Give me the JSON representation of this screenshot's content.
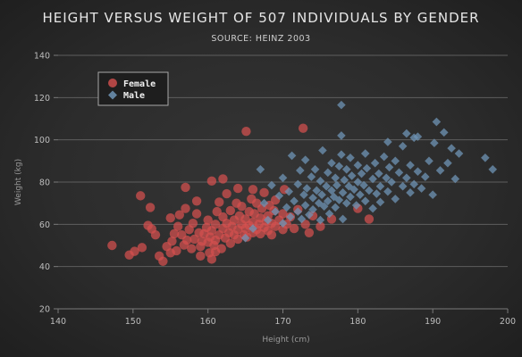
{
  "chart_data": {
    "type": "scatter",
    "title": "HEIGHT VERSUS WEIGHT OF 507 INDIVIDUALS BY GENDER",
    "subtitle": "SOURCE: HEINZ 2003",
    "xlabel": "Height (cm)",
    "ylabel": "Weight (kg)",
    "xlim": [
      140,
      200
    ],
    "ylim": [
      20,
      140
    ],
    "x_ticks": [
      140,
      150,
      160,
      170,
      180,
      190,
      200
    ],
    "y_ticks": [
      20,
      40,
      60,
      80,
      100,
      120,
      140
    ],
    "grid": "horizontal",
    "legend_position": "top-left",
    "series": [
      {
        "name": "Female",
        "marker": "circle",
        "color": "#d6504f",
        "points": [
          [
            147.2,
            50.0
          ],
          [
            149.5,
            45.5
          ],
          [
            150.2,
            47.2
          ],
          [
            151.0,
            73.5
          ],
          [
            151.2,
            49.0
          ],
          [
            152.0,
            59.5
          ],
          [
            152.5,
            57.8
          ],
          [
            152.3,
            68.0
          ],
          [
            153.5,
            45.0
          ],
          [
            154.0,
            42.5
          ],
          [
            154.5,
            49.5
          ],
          [
            155.0,
            46.5
          ],
          [
            155.2,
            52.0
          ],
          [
            155.5,
            55.5
          ],
          [
            155.8,
            47.5
          ],
          [
            156.0,
            59.0
          ],
          [
            156.2,
            64.5
          ],
          [
            156.5,
            55.0
          ],
          [
            156.8,
            50.2
          ],
          [
            157.0,
            67.5
          ],
          [
            157.2,
            52.5
          ],
          [
            157.5,
            57.5
          ],
          [
            157.8,
            48.5
          ],
          [
            158.0,
            60.5
          ],
          [
            158.2,
            53.0
          ],
          [
            158.5,
            65.0
          ],
          [
            158.8,
            56.0
          ],
          [
            159.0,
            49.5
          ],
          [
            159.2,
            52.0
          ],
          [
            159.5,
            55.5
          ],
          [
            159.8,
            58.5
          ],
          [
            160.0,
            51.5
          ],
          [
            160.0,
            62.0
          ],
          [
            160.2,
            46.5
          ],
          [
            160.3,
            54.0
          ],
          [
            160.5,
            57.0
          ],
          [
            160.5,
            80.5
          ],
          [
            160.8,
            50.0
          ],
          [
            161.0,
            52.5
          ],
          [
            161.0,
            60.0
          ],
          [
            161.2,
            66.0
          ],
          [
            161.5,
            55.0
          ],
          [
            161.5,
            70.5
          ],
          [
            161.8,
            48.5
          ],
          [
            162.0,
            58.0
          ],
          [
            162.0,
            63.5
          ],
          [
            162.3,
            53.5
          ],
          [
            162.5,
            60.5
          ],
          [
            162.5,
            74.5
          ],
          [
            162.8,
            56.0
          ],
          [
            163.0,
            51.0
          ],
          [
            163.0,
            66.5
          ],
          [
            163.2,
            59.0
          ],
          [
            163.5,
            62.0
          ],
          [
            163.5,
            55.0
          ],
          [
            163.8,
            70.0
          ],
          [
            164.0,
            53.0
          ],
          [
            164.0,
            57.5
          ],
          [
            164.2,
            64.0
          ],
          [
            164.5,
            60.0
          ],
          [
            164.5,
            68.5
          ],
          [
            164.8,
            55.0
          ],
          [
            165.0,
            58.0
          ],
          [
            165.0,
            62.5
          ],
          [
            165.1,
            104.0
          ],
          [
            165.2,
            54.0
          ],
          [
            165.5,
            66.0
          ],
          [
            165.5,
            59.5
          ],
          [
            165.8,
            72.0
          ],
          [
            166.0,
            56.0
          ],
          [
            166.0,
            61.0
          ],
          [
            166.2,
            65.0
          ],
          [
            166.5,
            57.5
          ],
          [
            166.5,
            70.0
          ],
          [
            166.8,
            60.0
          ],
          [
            167.0,
            55.5
          ],
          [
            167.0,
            63.0
          ],
          [
            167.2,
            67.5
          ],
          [
            167.5,
            58.5
          ],
          [
            167.5,
            75.0
          ],
          [
            167.8,
            61.5
          ],
          [
            168.0,
            57.0
          ],
          [
            168.0,
            64.0
          ],
          [
            168.2,
            69.0
          ],
          [
            168.5,
            60.5
          ],
          [
            168.5,
            55.0
          ],
          [
            168.8,
            66.5
          ],
          [
            169.0,
            59.0
          ],
          [
            169.0,
            71.5
          ],
          [
            169.5,
            62.0
          ],
          [
            170.0,
            57.5
          ],
          [
            170.0,
            65.0
          ],
          [
            170.2,
            76.5
          ],
          [
            170.5,
            60.0
          ],
          [
            171.0,
            63.5
          ],
          [
            171.5,
            58.0
          ],
          [
            172.0,
            67.0
          ],
          [
            172.7,
            105.5
          ],
          [
            173.0,
            60.0
          ],
          [
            173.5,
            56.0
          ],
          [
            174.0,
            64.0
          ],
          [
            175.0,
            59.0
          ],
          [
            176.5,
            62.5
          ],
          [
            180.0,
            67.5
          ],
          [
            181.5,
            62.5
          ],
          [
            159.0,
            45.0
          ],
          [
            160.5,
            43.5
          ],
          [
            161.0,
            47.0
          ],
          [
            158.5,
            71.0
          ],
          [
            155.0,
            63.0
          ],
          [
            153.0,
            55.0
          ],
          [
            157.0,
            77.5
          ],
          [
            162.0,
            81.5
          ],
          [
            164.0,
            77.0
          ],
          [
            166.0,
            76.5
          ]
        ]
      },
      {
        "name": "Male",
        "marker": "diamond",
        "color": "#6f94b6",
        "points": [
          [
            165.0,
            53.5
          ],
          [
            166.0,
            58.0
          ],
          [
            167.0,
            86.0
          ],
          [
            167.5,
            70.0
          ],
          [
            168.0,
            62.0
          ],
          [
            168.5,
            78.5
          ],
          [
            169.0,
            66.0
          ],
          [
            169.5,
            73.5
          ],
          [
            170.0,
            60.5
          ],
          [
            170.0,
            82.0
          ],
          [
            170.5,
            68.0
          ],
          [
            170.8,
            75.5
          ],
          [
            171.0,
            63.5
          ],
          [
            171.2,
            92.5
          ],
          [
            171.5,
            71.0
          ],
          [
            172.0,
            66.0
          ],
          [
            172.0,
            79.0
          ],
          [
            172.3,
            85.5
          ],
          [
            172.5,
            62.5
          ],
          [
            172.8,
            74.0
          ],
          [
            173.0,
            69.0
          ],
          [
            173.0,
            90.5
          ],
          [
            173.2,
            77.0
          ],
          [
            173.5,
            64.5
          ],
          [
            173.8,
            82.5
          ],
          [
            174.0,
            72.5
          ],
          [
            174.0,
            67.0
          ],
          [
            174.3,
            86.0
          ],
          [
            174.5,
            76.0
          ],
          [
            174.8,
            70.0
          ],
          [
            175.0,
            62.0
          ],
          [
            175.0,
            80.5
          ],
          [
            175.2,
            74.0
          ],
          [
            175.3,
            95.0
          ],
          [
            175.5,
            68.5
          ],
          [
            175.8,
            78.0
          ],
          [
            176.0,
            71.0
          ],
          [
            176.0,
            84.5
          ],
          [
            176.2,
            65.0
          ],
          [
            176.5,
            76.0
          ],
          [
            176.5,
            89.0
          ],
          [
            176.8,
            73.0
          ],
          [
            177.0,
            68.0
          ],
          [
            177.0,
            82.0
          ],
          [
            177.2,
            78.5
          ],
          [
            177.5,
            71.5
          ],
          [
            177.5,
            87.5
          ],
          [
            177.8,
            116.5
          ],
          [
            177.8,
            102.0
          ],
          [
            177.8,
            93.0
          ],
          [
            178.0,
            75.0
          ],
          [
            178.0,
            62.5
          ],
          [
            178.2,
            81.0
          ],
          [
            178.5,
            70.0
          ],
          [
            178.5,
            86.0
          ],
          [
            178.8,
            78.0
          ],
          [
            179.0,
            73.0
          ],
          [
            179.0,
            91.5
          ],
          [
            179.2,
            83.0
          ],
          [
            179.5,
            76.5
          ],
          [
            179.8,
            69.0
          ],
          [
            180.0,
            80.0
          ],
          [
            180.0,
            88.0
          ],
          [
            180.3,
            74.0
          ],
          [
            180.5,
            84.0
          ],
          [
            180.8,
            78.5
          ],
          [
            181.0,
            71.0
          ],
          [
            181.0,
            93.5
          ],
          [
            181.2,
            86.5
          ],
          [
            181.5,
            76.0
          ],
          [
            182.0,
            81.5
          ],
          [
            182.0,
            67.5
          ],
          [
            182.3,
            89.0
          ],
          [
            182.5,
            74.5
          ],
          [
            182.8,
            84.0
          ],
          [
            183.0,
            78.0
          ],
          [
            183.0,
            70.5
          ],
          [
            183.5,
            92.0
          ],
          [
            183.8,
            82.0
          ],
          [
            184.0,
            75.5
          ],
          [
            184.2,
            87.0
          ],
          [
            184.5,
            80.0
          ],
          [
            185.0,
            72.0
          ],
          [
            185.0,
            90.0
          ],
          [
            185.5,
            84.5
          ],
          [
            186.0,
            78.0
          ],
          [
            186.0,
            97.0
          ],
          [
            186.5,
            82.0
          ],
          [
            187.0,
            75.0
          ],
          [
            187.0,
            88.0
          ],
          [
            187.5,
            79.0
          ],
          [
            188.0,
            85.0
          ],
          [
            188.0,
            101.5
          ],
          [
            188.5,
            77.0
          ],
          [
            189.0,
            82.5
          ],
          [
            189.5,
            90.0
          ],
          [
            190.0,
            74.0
          ],
          [
            190.2,
            98.5
          ],
          [
            190.5,
            108.5
          ],
          [
            191.0,
            85.5
          ],
          [
            191.5,
            103.5
          ],
          [
            192.0,
            89.0
          ],
          [
            192.5,
            96.0
          ],
          [
            193.0,
            81.5
          ],
          [
            193.5,
            93.5
          ],
          [
            197.0,
            91.5
          ],
          [
            198.0,
            86.0
          ],
          [
            184.0,
            99.0
          ],
          [
            186.5,
            103.0
          ],
          [
            187.5,
            101.0
          ]
        ]
      }
    ]
  }
}
